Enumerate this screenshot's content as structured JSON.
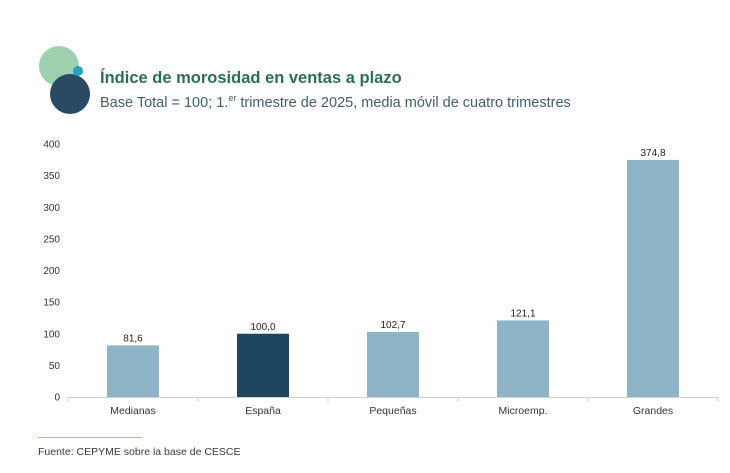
{
  "header": {
    "title": "Índice de morosidad en ventas a plazo",
    "subtitle_part1": "Base Total = 100; 1.",
    "subtitle_sup": "er",
    "subtitle_part2": " trimestre de 2025, media móvil de cuatro trimestres"
  },
  "source": "Fuente: CEPYME sobre la base de CESCE",
  "colors": {
    "bar_default": "#8fb4c5",
    "bar_highlight": "#1f4661",
    "logo_green": "#8cc8a0",
    "logo_navy": "#2a4a63",
    "logo_teal": "#1fa3c8"
  },
  "chart_data": {
    "type": "bar",
    "title": "Índice de morosidad en ventas a plazo",
    "categories": [
      "Medianas",
      "España",
      "Pequeñas",
      "Microemp.",
      "Grandes"
    ],
    "values": [
      81.6,
      100.0,
      102.7,
      121.1,
      374.8
    ],
    "value_labels": [
      "81,6",
      "100,0",
      "102,7",
      "121,1",
      "374,8"
    ],
    "highlight_index": 1,
    "ylim": [
      0,
      400
    ],
    "yticks": [
      0,
      50,
      100,
      150,
      200,
      250,
      300,
      350,
      400
    ],
    "ytick_labels": [
      "0",
      "50",
      "100",
      "150",
      "200",
      "250",
      "300",
      "350",
      "400"
    ],
    "grid": false,
    "legend": "none"
  }
}
